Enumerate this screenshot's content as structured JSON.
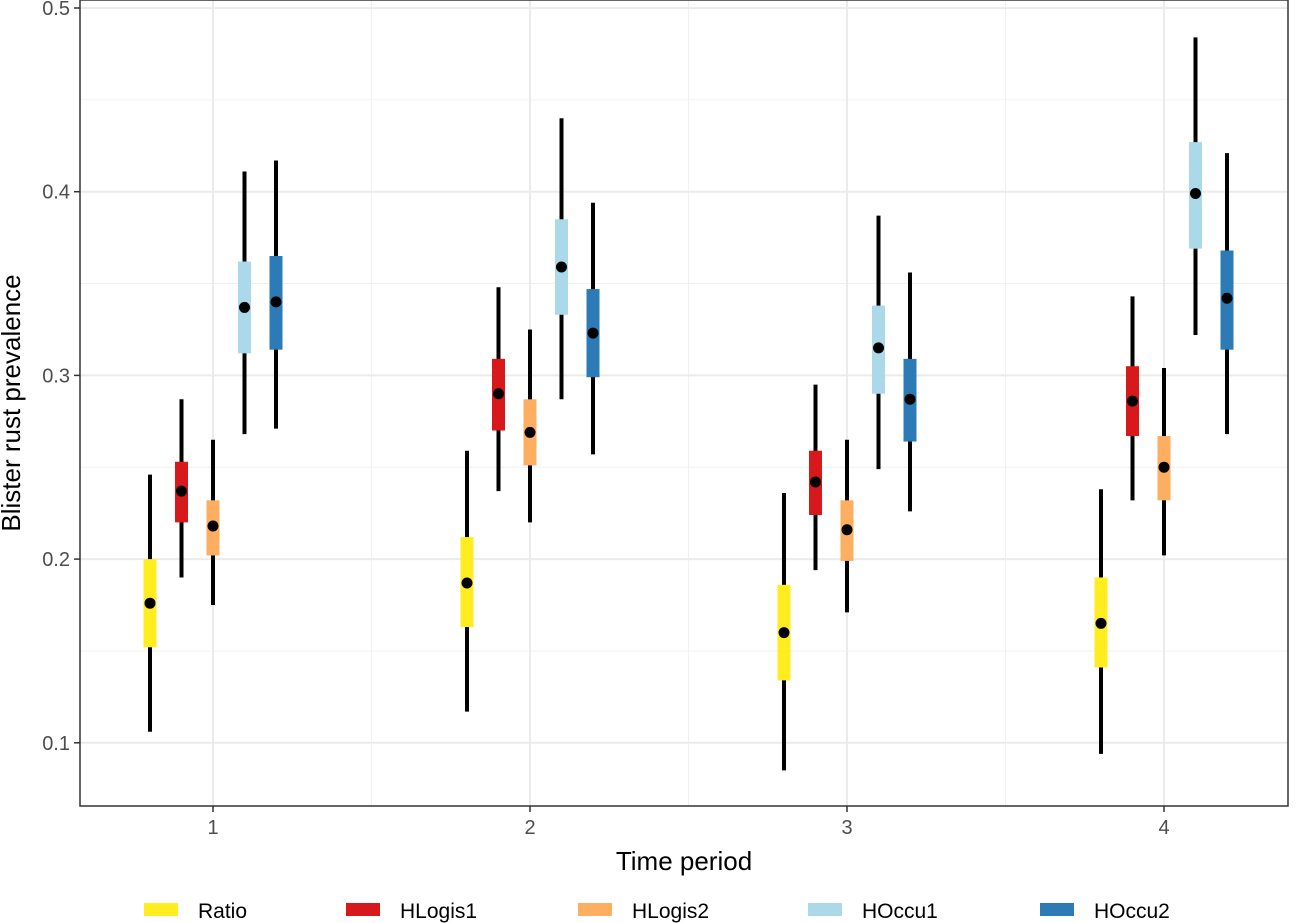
{
  "chart_data": {
    "type": "errorbar",
    "title": "",
    "xlabel": "Time period",
    "ylabel": "Blister rust prevalence",
    "ylim": [
      0.065,
      0.5
    ],
    "yticks": [
      0.1,
      0.2,
      0.3,
      0.4,
      0.5
    ],
    "ytick_labels": [
      "0.1",
      "0.2",
      "0.3",
      "0.4",
      "0.5"
    ],
    "categories": [
      "1",
      "2",
      "3",
      "4"
    ],
    "grid": true,
    "legend_position": "bottom",
    "series": [
      {
        "name": "Ratio",
        "color": "#FFED1F",
        "points": [
          {
            "mean": 0.176,
            "inner": [
              0.152,
              0.2
            ],
            "outer": [
              0.106,
              0.246
            ]
          },
          {
            "mean": 0.187,
            "inner": [
              0.163,
              0.212
            ],
            "outer": [
              0.117,
              0.259
            ]
          },
          {
            "mean": 0.16,
            "inner": [
              0.134,
              0.186
            ],
            "outer": [
              0.085,
              0.236
            ]
          },
          {
            "mean": 0.165,
            "inner": [
              0.141,
              0.19
            ],
            "outer": [
              0.094,
              0.238
            ]
          }
        ]
      },
      {
        "name": "HLogis1",
        "color": "#D7191C",
        "points": [
          {
            "mean": 0.237,
            "inner": [
              0.22,
              0.253
            ],
            "outer": [
              0.19,
              0.287
            ]
          },
          {
            "mean": 0.29,
            "inner": [
              0.27,
              0.309
            ],
            "outer": [
              0.237,
              0.348
            ]
          },
          {
            "mean": 0.242,
            "inner": [
              0.224,
              0.259
            ],
            "outer": [
              0.194,
              0.295
            ]
          },
          {
            "mean": 0.286,
            "inner": [
              0.267,
              0.305
            ],
            "outer": [
              0.232,
              0.343
            ]
          }
        ]
      },
      {
        "name": "HLogis2",
        "color": "#FDAE61",
        "points": [
          {
            "mean": 0.218,
            "inner": [
              0.202,
              0.232
            ],
            "outer": [
              0.175,
              0.265
            ]
          },
          {
            "mean": 0.269,
            "inner": [
              0.251,
              0.287
            ],
            "outer": [
              0.22,
              0.325
            ]
          },
          {
            "mean": 0.216,
            "inner": [
              0.199,
              0.232
            ],
            "outer": [
              0.171,
              0.265
            ]
          },
          {
            "mean": 0.25,
            "inner": [
              0.232,
              0.267
            ],
            "outer": [
              0.202,
              0.304
            ]
          }
        ]
      },
      {
        "name": "HOccu1",
        "color": "#ABD9E9",
        "points": [
          {
            "mean": 0.337,
            "inner": [
              0.312,
              0.362
            ],
            "outer": [
              0.268,
              0.411
            ]
          },
          {
            "mean": 0.359,
            "inner": [
              0.333,
              0.385
            ],
            "outer": [
              0.287,
              0.44
            ]
          },
          {
            "mean": 0.315,
            "inner": [
              0.29,
              0.338
            ],
            "outer": [
              0.249,
              0.387
            ]
          },
          {
            "mean": 0.399,
            "inner": [
              0.369,
              0.427
            ],
            "outer": [
              0.322,
              0.484
            ]
          }
        ]
      },
      {
        "name": "HOccu2",
        "color": "#2C7BB6",
        "points": [
          {
            "mean": 0.34,
            "inner": [
              0.314,
              0.365
            ],
            "outer": [
              0.271,
              0.417
            ]
          },
          {
            "mean": 0.323,
            "inner": [
              0.299,
              0.347
            ],
            "outer": [
              0.257,
              0.394
            ]
          },
          {
            "mean": 0.287,
            "inner": [
              0.264,
              0.309
            ],
            "outer": [
              0.226,
              0.356
            ]
          },
          {
            "mean": 0.342,
            "inner": [
              0.314,
              0.368
            ],
            "outer": [
              0.268,
              0.421
            ]
          }
        ]
      }
    ]
  }
}
